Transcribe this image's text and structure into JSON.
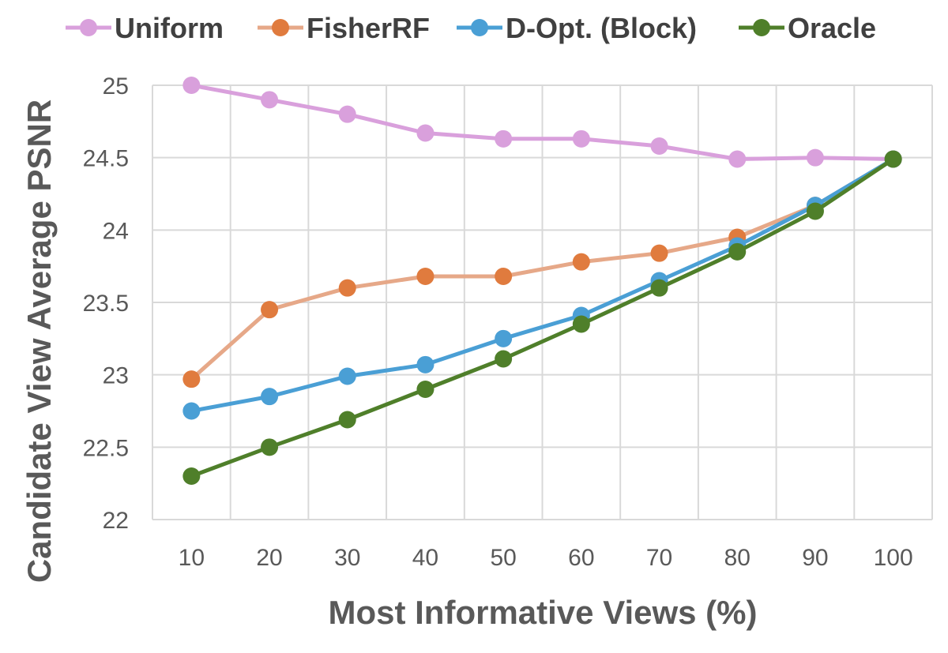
{
  "chart_data": {
    "type": "line",
    "title": "",
    "xlabel": "Most Informative Views (%)",
    "ylabel": "Candidate View Average PSNR",
    "x": [
      10,
      20,
      30,
      40,
      50,
      60,
      70,
      80,
      90,
      100
    ],
    "categories": [
      "10",
      "20",
      "30",
      "40",
      "50",
      "60",
      "70",
      "80",
      "90",
      "100"
    ],
    "ylim": [
      22,
      25
    ],
    "yticks": [
      22,
      22.5,
      23,
      23.5,
      24,
      24.5,
      25
    ],
    "ytick_labels": [
      "22",
      "22.5",
      "23",
      "23.5",
      "24",
      "24.5",
      "25"
    ],
    "grid": true,
    "legend_position": "top",
    "series": [
      {
        "name": "Uniform",
        "color": "#D9A0DC",
        "values": [
          25.0,
          24.9,
          24.8,
          24.67,
          24.63,
          24.63,
          24.58,
          24.49,
          24.5,
          24.49
        ]
      },
      {
        "name": "FisherRF",
        "color": "#E6A888",
        "marker_color": "#E07B3E",
        "values": [
          22.97,
          23.45,
          23.6,
          23.68,
          23.68,
          23.78,
          23.84,
          23.95,
          24.17,
          24.49
        ]
      },
      {
        "name": "D-Opt. (Block)",
        "color": "#4A9FD5",
        "values": [
          22.75,
          22.85,
          22.99,
          23.07,
          23.25,
          23.41,
          23.65,
          23.89,
          24.17,
          24.49
        ]
      },
      {
        "name": "Oracle",
        "color": "#4F7F2A",
        "values": [
          22.3,
          22.5,
          22.69,
          22.9,
          23.11,
          23.35,
          23.6,
          23.85,
          24.13,
          24.49
        ]
      }
    ]
  }
}
